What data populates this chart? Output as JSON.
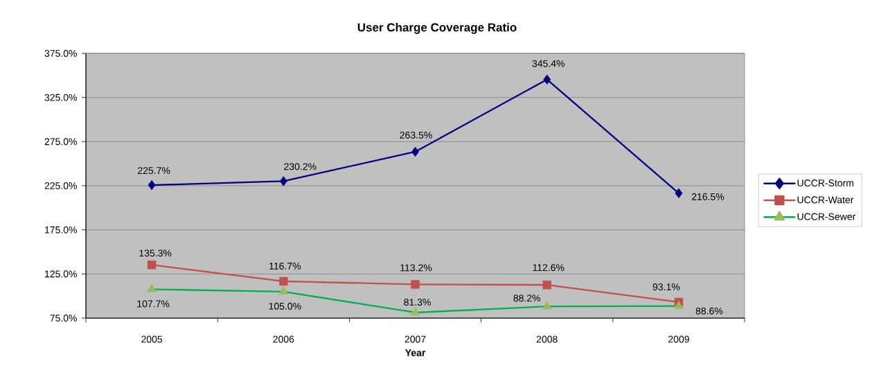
{
  "chart_data": {
    "type": "line",
    "title": "User Charge Coverage Ratio",
    "xlabel": "Year",
    "categories": [
      "2005",
      "2006",
      "2007",
      "2008",
      "2009"
    ],
    "series": [
      {
        "name": "UCCR-Storm",
        "color": "#000080",
        "marker": "diamond",
        "values": [
          225.7,
          230.2,
          263.5,
          345.4,
          216.5
        ],
        "value_labels": [
          "225.7%",
          "230.2%",
          "263.5%",
          "345.4%",
          "216.5%"
        ]
      },
      {
        "name": "UCCR-Water",
        "color": "#c0504d",
        "marker": "square",
        "values": [
          135.3,
          116.7,
          113.2,
          112.6,
          93.1
        ],
        "value_labels": [
          "135.3%",
          "116.7%",
          "113.2%",
          "112.6%",
          "93.1%"
        ]
      },
      {
        "name": "UCCR-Sewer",
        "color": "#00b050",
        "colors": [
          "#9bbb59",
          "#9bbb59",
          "#9bbb59",
          "#9bbb59",
          "#9bbb59"
        ],
        "marker": "triangle",
        "values": [
          107.7,
          105.0,
          81.3,
          88.2,
          88.6
        ],
        "value_labels": [
          "107.7%",
          "105.0%",
          "81.3%",
          "88.2%",
          "88.6%"
        ]
      }
    ],
    "ylim": [
      75,
      375
    ],
    "yticks": [
      {
        "value": 75,
        "label": "75.0%"
      },
      {
        "value": 125,
        "label": "125.0%"
      },
      {
        "value": 175,
        "label": "175.0%"
      },
      {
        "value": 225,
        "label": "225.0%"
      },
      {
        "value": 275,
        "label": "275.0%"
      },
      {
        "value": 325,
        "label": "325.0%"
      },
      {
        "value": 375,
        "label": "375.0%"
      }
    ],
    "grid": "y",
    "legend": "right",
    "line_style": "solid"
  }
}
